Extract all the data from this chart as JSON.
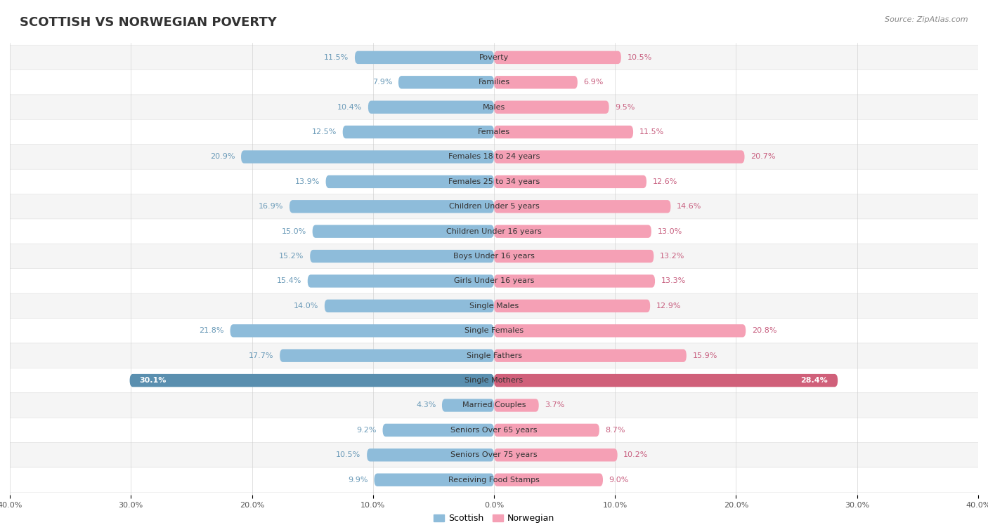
{
  "title": "SCOTTISH VS NORWEGIAN POVERTY",
  "source": "Source: ZipAtlas.com",
  "categories": [
    "Poverty",
    "Families",
    "Males",
    "Females",
    "Females 18 to 24 years",
    "Females 25 to 34 years",
    "Children Under 5 years",
    "Children Under 16 years",
    "Boys Under 16 years",
    "Girls Under 16 years",
    "Single Males",
    "Single Females",
    "Single Fathers",
    "Single Mothers",
    "Married Couples",
    "Seniors Over 65 years",
    "Seniors Over 75 years",
    "Receiving Food Stamps"
  ],
  "scottish": [
    11.5,
    7.9,
    10.4,
    12.5,
    20.9,
    13.9,
    16.9,
    15.0,
    15.2,
    15.4,
    14.0,
    21.8,
    17.7,
    30.1,
    4.3,
    9.2,
    10.5,
    9.9
  ],
  "norwegian": [
    10.5,
    6.9,
    9.5,
    11.5,
    20.7,
    12.6,
    14.6,
    13.0,
    13.2,
    13.3,
    12.9,
    20.8,
    15.9,
    28.4,
    3.7,
    8.7,
    10.2,
    9.0
  ],
  "scottish_color": "#8ebcda",
  "norwegian_color": "#f5a0b5",
  "label_color_scottish": "#6a9ab8",
  "label_color_norwegian": "#c86080",
  "bg_color": "#ffffff",
  "row_bg_even": "#f5f5f5",
  "row_bg_odd": "#ffffff",
  "axis_max": 40.0,
  "bar_height": 0.52,
  "title_fontsize": 13,
  "label_fontsize": 8,
  "category_fontsize": 8,
  "legend_fontsize": 9,
  "highlight_bar_scottish": "#5a8faf",
  "highlight_bar_norwegian": "#d0607a",
  "highlight_label_color": "#ffffff"
}
